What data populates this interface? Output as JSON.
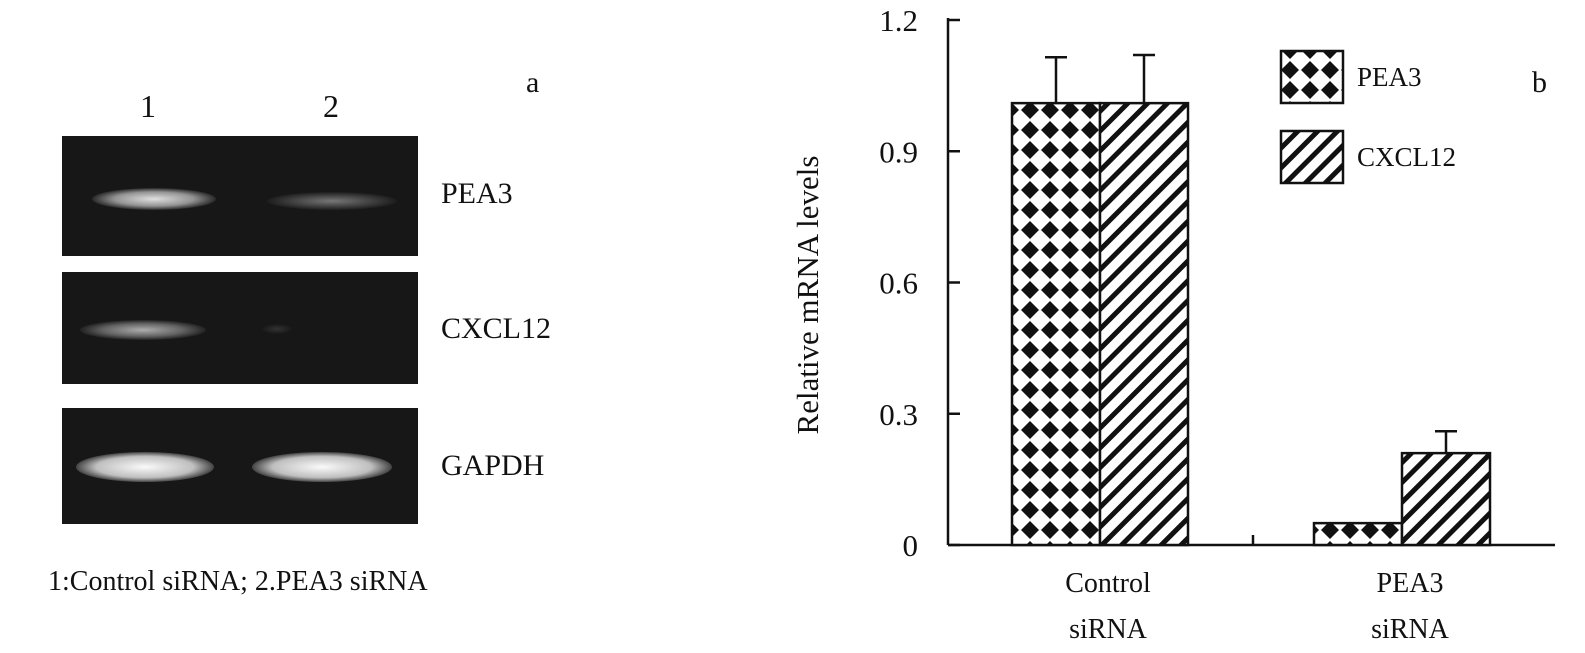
{
  "panel_a": {
    "label": "a",
    "lanes": [
      "1",
      "2"
    ],
    "genes": [
      "PEA3",
      "CXCL12",
      "GAPDH"
    ],
    "band_intensity": {
      "PEA3": [
        0.85,
        0.35
      ],
      "CXCL12": [
        0.6,
        0.05
      ],
      "GAPDH": [
        1.0,
        1.0
      ]
    },
    "caption": "1:Control siRNA; 2.PEA3 siRNA"
  },
  "panel_b": {
    "label": "b"
  },
  "chart_data": {
    "type": "bar",
    "ylabel": "Relative mRNA levels",
    "xlabel": "",
    "ylim": [
      0,
      1.2
    ],
    "yticks": [
      "0",
      "0.3",
      "0.6",
      "0.9",
      "1.2"
    ],
    "categories": [
      [
        "Control",
        "siRNA"
      ],
      [
        "PEA3",
        "siRNA"
      ]
    ],
    "series": [
      {
        "name": "PEA3",
        "pattern": "diamond-checker",
        "values": [
          1.01,
          0.05
        ],
        "errors": [
          0.105,
          0.0
        ]
      },
      {
        "name": "CXCL12",
        "pattern": "diagonal-hatch",
        "values": [
          1.01,
          0.21
        ],
        "errors": [
          0.11,
          0.05
        ]
      }
    ],
    "legend_position": "top-right",
    "grid": false
  }
}
